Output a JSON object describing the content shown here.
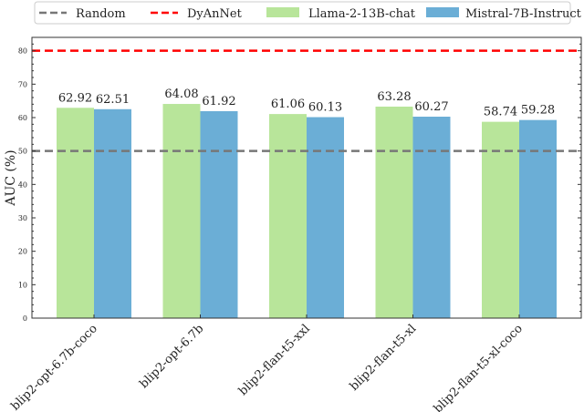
{
  "chart_data": {
    "type": "bar",
    "title": "",
    "xlabel": "",
    "ylabel": "AUC (%)",
    "ylim": [
      0,
      84
    ],
    "yticks": [
      0,
      10,
      20,
      30,
      40,
      50,
      60,
      70,
      80
    ],
    "grid": false,
    "legend_placement": "top",
    "categories": [
      "blip2-opt-6.7b-coco",
      "blip2-opt-6.7b",
      "blip2-flan-t5-xxl",
      "blip2-flan-t5-xl",
      "blip2-flan-t5-xl-coco"
    ],
    "series": [
      {
        "name": "Llama-2-13B-chat",
        "values": [
          62.92,
          64.08,
          61.06,
          63.28,
          58.74
        ],
        "labels": [
          "62.92",
          "64.08",
          "61.06",
          "63.28",
          "58.74"
        ],
        "color": "#b8e59a"
      },
      {
        "name": "Mistral-7B-Instruct",
        "values": [
          62.51,
          61.92,
          60.13,
          60.27,
          59.28
        ],
        "labels": [
          "62.51",
          "61.92",
          "60.13",
          "60.27",
          "59.28"
        ],
        "color": "#6baed6"
      }
    ],
    "reference_lines": [
      {
        "name": "Random",
        "value": 50,
        "color": "#777777"
      },
      {
        "name": "DyAnNet",
        "value": 80,
        "color": "#ff0000"
      }
    ]
  }
}
